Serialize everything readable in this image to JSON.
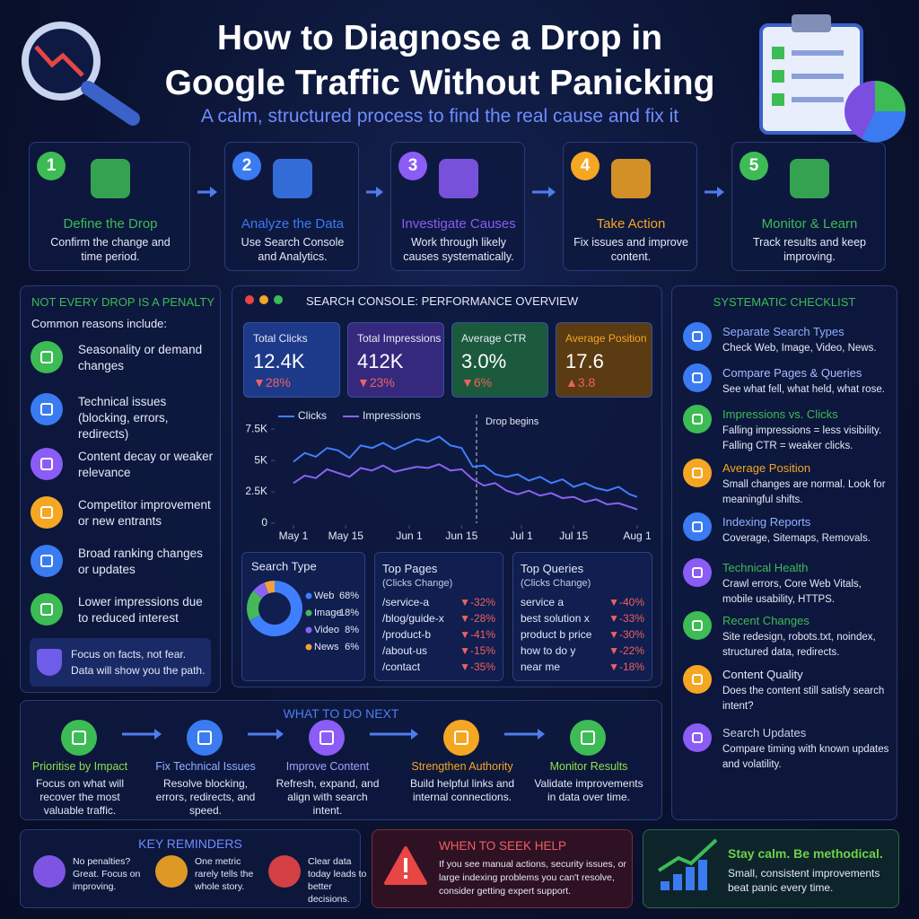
{
  "header": {
    "title": [
      "How to Diagnose a Drop in",
      "Google Traffic Without Panicking"
    ],
    "subtitle": "A calm, structured process to find the real cause and fix it"
  },
  "steps": [
    {
      "number": 1,
      "title": "Define the Drop",
      "text": "Confirm the change and time period."
    },
    {
      "number": 2,
      "title": "Analyze the Data",
      "text": "Use Search Console and Analytics."
    },
    {
      "number": 3,
      "title": "Investigate Causes",
      "text": "Work through likely causes systematically."
    },
    {
      "number": 4,
      "title": "Take Action",
      "text": "Fix issues and improve content."
    },
    {
      "number": 5,
      "title": "Monitor & Learn",
      "text": "Track results and keep improving."
    }
  ],
  "reasons": {
    "title": "NOT EVERY DROP IS A PENALTY",
    "intro": "Common reasons include:",
    "items": [
      "Seasonality or demand changes",
      "Technical issues (blocking, errors, redirects)",
      "Content decay or weaker relevance",
      "Competitor improvement or new entrants",
      "Broad ranking changes or updates",
      "Lower impressions due to reduced interest"
    ],
    "note": "Focus on facts, not fear. Data will show you the path."
  },
  "console": {
    "title": "SEARCH CONSOLE: PERFORMANCE OVERVIEW",
    "kpis": [
      {
        "label": "Total Clicks",
        "value": "12.4K",
        "change": "▼28%"
      },
      {
        "label": "Total Impressions",
        "value": "412K",
        "change": "▼23%"
      },
      {
        "label": "Average CTR",
        "value": "3.0%",
        "change": "▼6%"
      },
      {
        "label": "Average Position",
        "value": "17.6",
        "change": "▲3.8"
      }
    ],
    "top_pages": {
      "title": "Top Pages",
      "subtitle": "(Clicks Change)",
      "rows": [
        [
          "/service-a",
          "▼-32%"
        ],
        [
          "/blog/guide-x",
          "▼-28%"
        ],
        [
          "/product-b",
          "▼-41%"
        ],
        [
          "/about-us",
          "▼-15%"
        ],
        [
          "/contact",
          "▼-35%"
        ]
      ]
    },
    "top_queries": {
      "title": "Top Queries",
      "subtitle": "(Clicks Change)",
      "rows": [
        [
          "service a",
          "▼-40%"
        ],
        [
          "best solution x",
          "▼-33%"
        ],
        [
          "product b price",
          "▼-30%"
        ],
        [
          "how to do y",
          "▼-22%"
        ],
        [
          "near me",
          "▼-18%"
        ]
      ]
    }
  },
  "chart_data": [
    {
      "type": "line",
      "x": [
        0,
        3,
        6,
        9,
        12,
        15,
        18,
        21,
        24,
        27,
        30,
        33,
        36,
        39,
        42,
        45,
        48,
        51,
        54,
        57,
        60,
        63,
        66,
        69,
        72,
        75,
        78,
        81,
        84,
        87,
        90,
        92
      ],
      "series": [
        {
          "name": "Clicks",
          "color": "#3f7fff",
          "values": [
            4900,
            5600,
            5300,
            6000,
            5800,
            5200,
            6200,
            6000,
            6400,
            5900,
            6300,
            6700,
            6500,
            6900,
            6200,
            6000,
            4500,
            4600,
            3900,
            3700,
            3900,
            3400,
            3700,
            3200,
            3500,
            2900,
            3200,
            2800,
            2600,
            2900,
            2300,
            2100
          ]
        },
        {
          "name": "Impressions",
          "color": "#8a63f2",
          "values": [
            3200,
            3800,
            3600,
            4300,
            4000,
            3700,
            4400,
            4200,
            4600,
            4100,
            4300,
            4500,
            4400,
            4700,
            4200,
            4300,
            3500,
            3000,
            3200,
            2600,
            2300,
            2600,
            2200,
            2400,
            2000,
            2100,
            1700,
            1900,
            1500,
            1600,
            1300,
            1100
          ]
        }
      ],
      "xlim": [
        0,
        92
      ],
      "xticks": [
        {
          "value": 0,
          "label": "May 1"
        },
        {
          "value": 14,
          "label": "May 15"
        },
        {
          "value": 31,
          "label": "Jun 1"
        },
        {
          "value": 45,
          "label": "Jun 15"
        },
        {
          "value": 61,
          "label": "Jul 1"
        },
        {
          "value": 75,
          "label": "Jul 15"
        },
        {
          "value": 92,
          "label": "Aug 1"
        }
      ],
      "ylim": [
        0,
        8300
      ],
      "yticks": [
        0,
        {
          "value": 2500,
          "label": "2.5K"
        },
        {
          "value": 5000,
          "label": "5K"
        },
        {
          "value": 7500,
          "label": "7.5K"
        }
      ],
      "annotation": {
        "text": "Drop begins",
        "x": 49
      }
    },
    {
      "type": "pie",
      "title": "Search Type",
      "categories": [
        "Web",
        "Image",
        "Video",
        "News"
      ],
      "values": [
        68,
        18,
        8,
        6
      ],
      "value_labels": [
        "68%",
        "18%",
        "8%",
        "6%"
      ],
      "colors": [
        "#3f7fff",
        "#46b85a",
        "#8a63f2",
        "#f0a23a"
      ]
    }
  ],
  "checklist": {
    "title": "SYSTEMATIC CHECKLIST",
    "items": [
      {
        "title": "Separate Search Types",
        "text": "Check Web, Image, Video, News."
      },
      {
        "title": "Compare Pages & Queries",
        "text": "See what fell, what held, what rose."
      },
      {
        "title": "Impressions vs. Clicks",
        "text": "Falling impressions = less visibility. Falling CTR = weaker clicks."
      },
      {
        "title": "Average Position",
        "text": "Small changes are normal. Look for meaningful shifts."
      },
      {
        "title": "Indexing Reports",
        "text": "Coverage, Sitemaps, Removals."
      },
      {
        "title": "Technical Health",
        "text": "Crawl errors, Core Web Vitals, mobile usability, HTTPS."
      },
      {
        "title": "Recent Changes",
        "text": "Site redesign, robots.txt, noindex, structured data, redirects."
      },
      {
        "title": "Content Quality",
        "text": "Does the content still satisfy search intent?"
      },
      {
        "title": "Search Updates",
        "text": "Compare timing with known updates and volatility."
      }
    ]
  },
  "next": {
    "title": "WHAT TO DO NEXT",
    "items": [
      {
        "title": "Prioritise by Impact",
        "text": "Focus on what will recover the most valuable traffic."
      },
      {
        "title": "Fix Technical Issues",
        "text": "Resolve blocking, errors, redirects, and speed."
      },
      {
        "title": "Improve Content",
        "text": "Refresh, expand, and align with search intent."
      },
      {
        "title": "Strengthen Authority",
        "text": "Build helpful links and internal connections."
      },
      {
        "title": "Monitor Results",
        "text": "Validate improvements in data over time."
      }
    ]
  },
  "reminders": {
    "title": "KEY REMINDERS",
    "items": [
      "No penalties? Great. Focus on improving.",
      "One metric rarely tells the whole story.",
      "Clear data today leads to better decisions."
    ]
  },
  "help": {
    "title": "WHEN TO SEEK HELP",
    "text": "If you see manual actions, security issues, or large indexing problems you can't resolve, consider getting expert support."
  },
  "closing": {
    "title": "Stay calm. Be methodical.",
    "text": "Small, consistent improvements beat panic every time."
  }
}
